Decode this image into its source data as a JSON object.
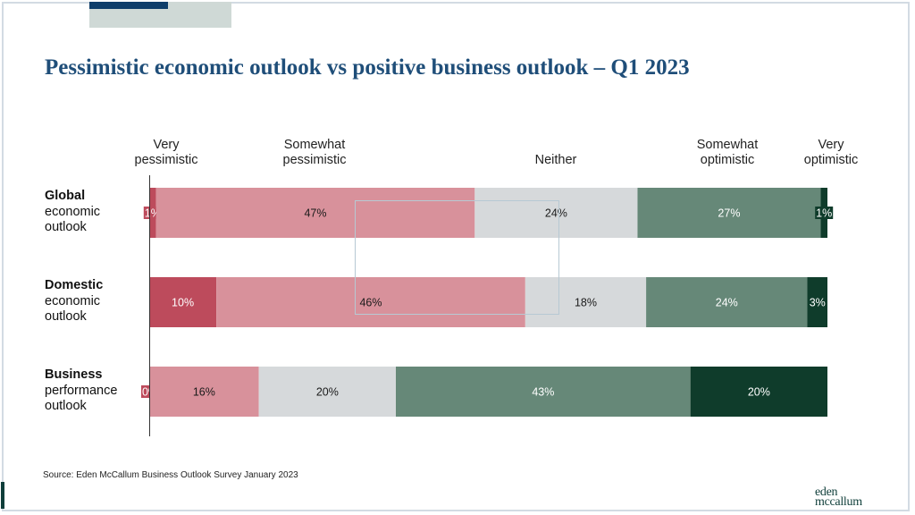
{
  "slide": {
    "title": "Pessimistic economic outlook vs positive business outlook – Q1 2023",
    "source": "Source: Eden McCallum Business Outlook Survey January 2023",
    "logo_line1": "eden",
    "logo_line2": "mccallum"
  },
  "chart_data": {
    "type": "bar",
    "orientation": "horizontal",
    "stacked": true,
    "title": "Pessimistic economic outlook vs positive business outlook – Q1 2023",
    "categories": [
      {
        "bold": "Global",
        "rest": [
          "economic",
          "outlook"
        ]
      },
      {
        "bold": "Domestic",
        "rest": [
          "economic",
          "outlook"
        ]
      },
      {
        "bold": "Business",
        "rest": [
          "performance",
          "outlook"
        ]
      }
    ],
    "series": [
      {
        "name": "Very pessimistic",
        "label_lines": [
          "Very",
          "pessimistic"
        ],
        "color": "#bd4b5c",
        "label_color": "#ffffff",
        "values": [
          1,
          10,
          0
        ]
      },
      {
        "name": "Somewhat pessimistic",
        "label_lines": [
          "Somewhat",
          "pessimistic"
        ],
        "color": "#d8919b",
        "label_color": "#1a1a1a",
        "values": [
          47,
          46,
          16
        ]
      },
      {
        "name": "Neither",
        "label_lines": [
          "Neither"
        ],
        "color": "#d6d9db",
        "label_color": "#1a1a1a",
        "values": [
          24,
          18,
          20
        ]
      },
      {
        "name": "Somewhat optimistic",
        "label_lines": [
          "Somewhat",
          "optimistic"
        ],
        "color": "#668878",
        "label_color": "#ffffff",
        "values": [
          27,
          24,
          43
        ]
      },
      {
        "name": "Very optimistic",
        "label_lines": [
          "Very",
          "optimistic"
        ],
        "color": "#0f3c2b",
        "label_color": "#ffffff",
        "values": [
          1,
          3,
          20
        ]
      }
    ],
    "value_suffix": "%",
    "legend": "top",
    "grid": false
  }
}
